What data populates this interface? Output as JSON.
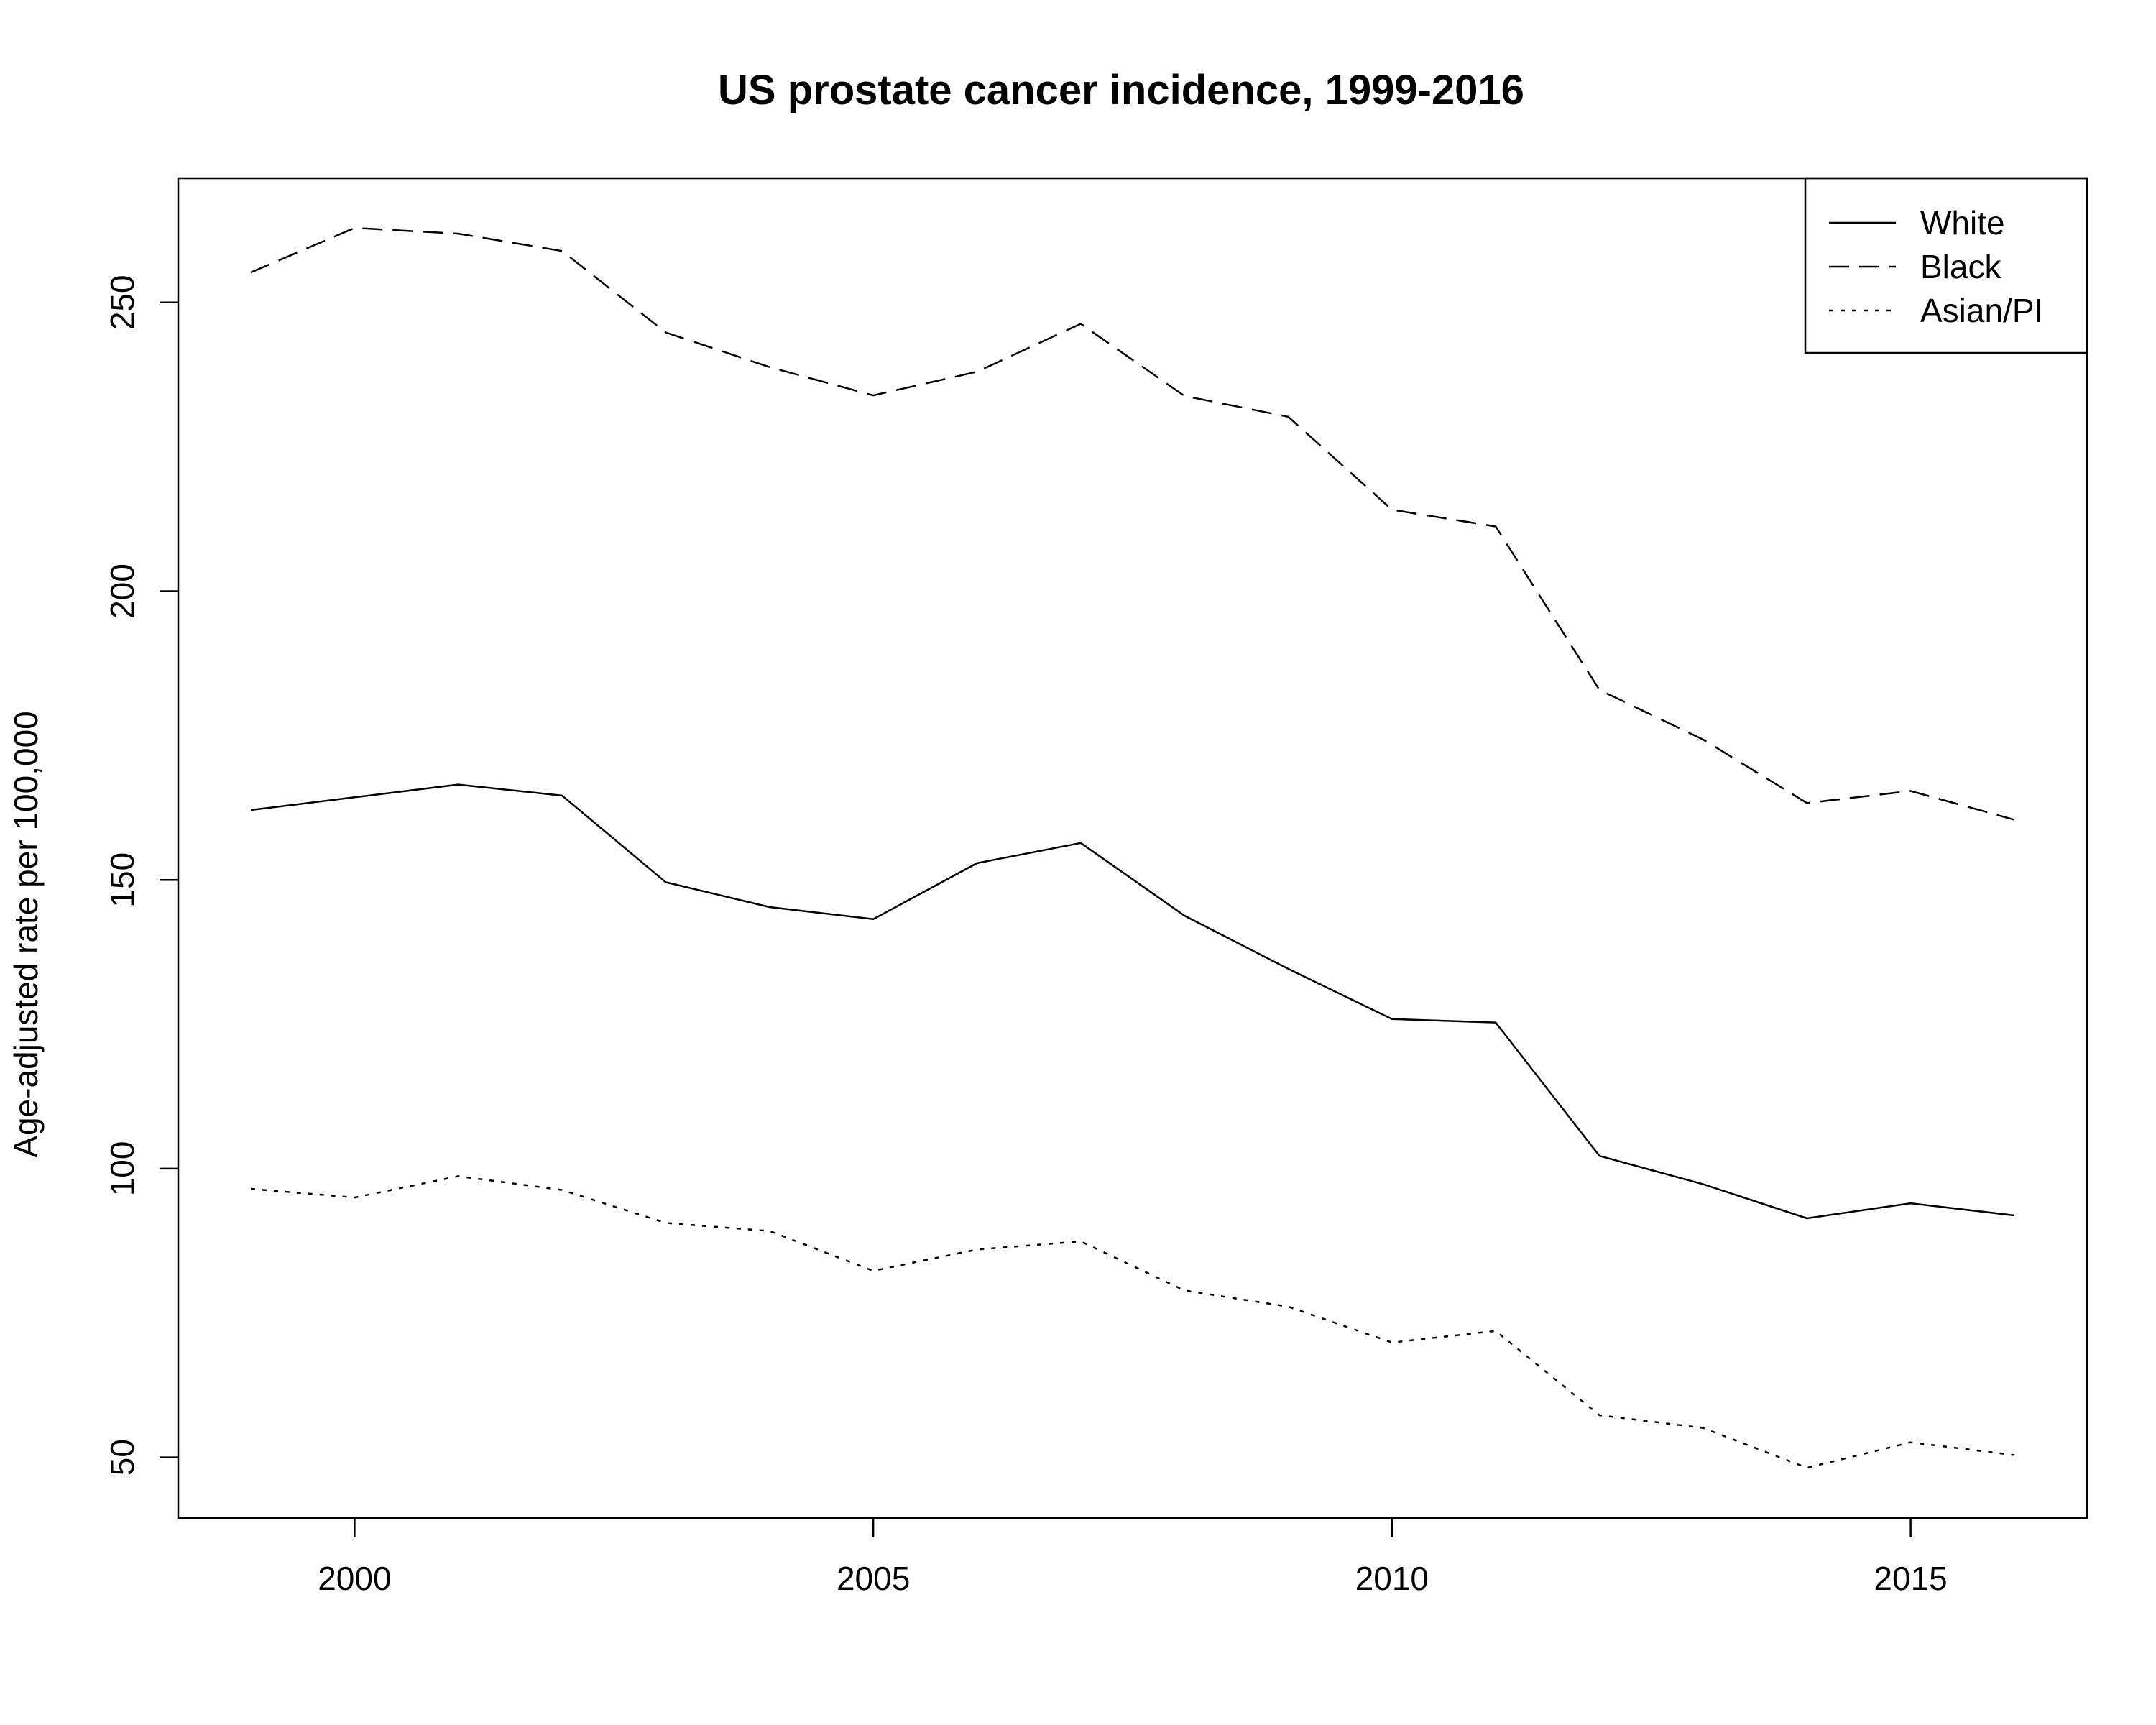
{
  "chart_data": {
    "type": "line",
    "title": "US prostate cancer incidence, 1999-2016",
    "xlabel": "",
    "ylabel": "Age-adjusted rate per 100,000",
    "x": [
      1999,
      2000,
      2001,
      2002,
      2003,
      2004,
      2005,
      2006,
      2007,
      2008,
      2009,
      2010,
      2011,
      2012,
      2013,
      2014,
      2015,
      2016
    ],
    "xlim": [
      1998.3,
      2016.7
    ],
    "ylim": [
      39.5,
      271.5
    ],
    "xticks": [
      2000,
      2005,
      2010,
      2015
    ],
    "yticks": [
      50,
      100,
      150,
      200,
      250
    ],
    "grid": false,
    "legend": "top-right",
    "series": [
      {
        "name": "White",
        "dash": "solid",
        "values": [
          162.1,
          164.3,
          166.5,
          164.6,
          149.6,
          145.3,
          143.2,
          152.9,
          156.4,
          143.8,
          134.6,
          125.9,
          125.3,
          102.2,
          97.3,
          91.4,
          94.0,
          91.9
        ]
      },
      {
        "name": "Black",
        "dash": "dashed",
        "values": [
          255.2,
          262.9,
          261.9,
          258.9,
          244.8,
          238.8,
          233.9,
          238.0,
          246.3,
          233.8,
          230.2,
          214.1,
          211.2,
          182.9,
          174.3,
          163.3,
          165.4,
          160.4
        ]
      },
      {
        "name": "Asian/PI",
        "dash": "dotted",
        "values": [
          96.5,
          95.0,
          98.7,
          96.3,
          90.6,
          89.2,
          82.3,
          86.0,
          87.4,
          78.9,
          76.1,
          69.9,
          71.9,
          57.3,
          55.1,
          48.2,
          52.6,
          50.4
        ]
      }
    ]
  }
}
